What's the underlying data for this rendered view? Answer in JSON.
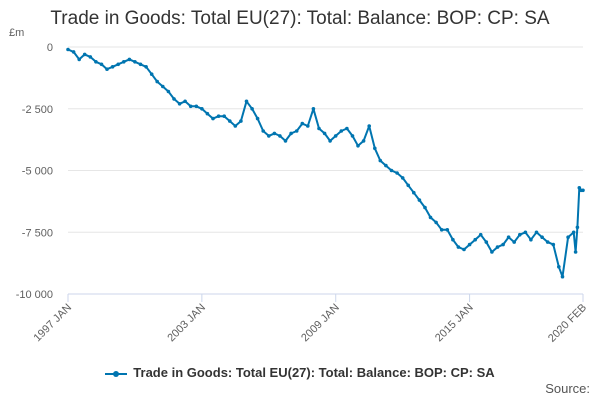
{
  "chart_data": {
    "type": "line",
    "title": "Trade in Goods: Total EU(27): Total: Balance: BOP: CP: SA",
    "unit_label": "£m",
    "ylabel": "",
    "xlabel": "",
    "ylim": [
      -10000,
      0
    ],
    "y_ticks": [
      0,
      -2500,
      -5000,
      -7500,
      -10000
    ],
    "y_tick_labels": [
      "0",
      "-2 500",
      "-5 000",
      "-7 500",
      "-10 000"
    ],
    "x_tick_labels": [
      "1997 JAN",
      "2003 JAN",
      "2009 JAN",
      "2015 JAN",
      "2020 FEB"
    ],
    "x_range": [
      "1997 JAN",
      "2020 FEB"
    ],
    "grid": "horizontal",
    "legend_position": "bottom",
    "series_color": "#0075B0",
    "series": [
      {
        "name": "Trade in Goods: Total EU(27): Total: Balance: BOP: CP: SA",
        "points": [
          [
            "1997-01",
            -100
          ],
          [
            "1997-04",
            -200
          ],
          [
            "1997-07",
            -500
          ],
          [
            "1997-10",
            -300
          ],
          [
            "1998-01",
            -400
          ],
          [
            "1998-04",
            -600
          ],
          [
            "1998-07",
            -700
          ],
          [
            "1998-10",
            -900
          ],
          [
            "1999-01",
            -800
          ],
          [
            "1999-04",
            -700
          ],
          [
            "1999-07",
            -600
          ],
          [
            "1999-10",
            -500
          ],
          [
            "2000-01",
            -600
          ],
          [
            "2000-04",
            -700
          ],
          [
            "2000-07",
            -800
          ],
          [
            "2000-10",
            -1100
          ],
          [
            "2001-01",
            -1400
          ],
          [
            "2001-04",
            -1600
          ],
          [
            "2001-07",
            -1800
          ],
          [
            "2001-10",
            -2100
          ],
          [
            "2002-01",
            -2300
          ],
          [
            "2002-04",
            -2200
          ],
          [
            "2002-07",
            -2400
          ],
          [
            "2002-10",
            -2400
          ],
          [
            "2003-01",
            -2500
          ],
          [
            "2003-04",
            -2700
          ],
          [
            "2003-07",
            -2900
          ],
          [
            "2003-10",
            -2800
          ],
          [
            "2004-01",
            -2800
          ],
          [
            "2004-04",
            -3000
          ],
          [
            "2004-07",
            -3200
          ],
          [
            "2004-10",
            -3000
          ],
          [
            "2005-01",
            -2200
          ],
          [
            "2005-04",
            -2500
          ],
          [
            "2005-07",
            -2900
          ],
          [
            "2005-10",
            -3400
          ],
          [
            "2006-01",
            -3600
          ],
          [
            "2006-04",
            -3500
          ],
          [
            "2006-07",
            -3600
          ],
          [
            "2006-10",
            -3800
          ],
          [
            "2007-01",
            -3500
          ],
          [
            "2007-04",
            -3400
          ],
          [
            "2007-07",
            -3100
          ],
          [
            "2007-10",
            -3200
          ],
          [
            "2008-01",
            -2500
          ],
          [
            "2008-04",
            -3300
          ],
          [
            "2008-07",
            -3500
          ],
          [
            "2008-10",
            -3800
          ],
          [
            "2009-01",
            -3600
          ],
          [
            "2009-04",
            -3400
          ],
          [
            "2009-07",
            -3300
          ],
          [
            "2009-10",
            -3600
          ],
          [
            "2010-01",
            -4000
          ],
          [
            "2010-04",
            -3800
          ],
          [
            "2010-07",
            -3200
          ],
          [
            "2010-10",
            -4100
          ],
          [
            "2011-01",
            -4600
          ],
          [
            "2011-04",
            -4800
          ],
          [
            "2011-07",
            -5000
          ],
          [
            "2011-10",
            -5100
          ],
          [
            "2012-01",
            -5300
          ],
          [
            "2012-04",
            -5600
          ],
          [
            "2012-07",
            -5900
          ],
          [
            "2012-10",
            -6200
          ],
          [
            "2013-01",
            -6500
          ],
          [
            "2013-04",
            -6900
          ],
          [
            "2013-07",
            -7100
          ],
          [
            "2013-10",
            -7400
          ],
          [
            "2014-01",
            -7400
          ],
          [
            "2014-04",
            -7800
          ],
          [
            "2014-07",
            -8100
          ],
          [
            "2014-10",
            -8200
          ],
          [
            "2015-01",
            -8000
          ],
          [
            "2015-04",
            -7800
          ],
          [
            "2015-07",
            -7600
          ],
          [
            "2015-10",
            -7900
          ],
          [
            "2016-01",
            -8300
          ],
          [
            "2016-04",
            -8100
          ],
          [
            "2016-07",
            -8000
          ],
          [
            "2016-10",
            -7700
          ],
          [
            "2017-01",
            -7900
          ],
          [
            "2017-04",
            -7600
          ],
          [
            "2017-07",
            -7500
          ],
          [
            "2017-10",
            -7800
          ],
          [
            "2018-01",
            -7500
          ],
          [
            "2018-04",
            -7700
          ],
          [
            "2018-07",
            -7900
          ],
          [
            "2018-10",
            -8000
          ],
          [
            "2019-01",
            -8900
          ],
          [
            "2019-03",
            -9300
          ],
          [
            "2019-06",
            -7700
          ],
          [
            "2019-09",
            -7500
          ],
          [
            "2019-10",
            -8300
          ],
          [
            "2019-11",
            -7300
          ],
          [
            "2019-12",
            -5700
          ],
          [
            "2020-01",
            -5800
          ],
          [
            "2020-02",
            -5800
          ]
        ]
      }
    ]
  },
  "source_label": "Source:"
}
